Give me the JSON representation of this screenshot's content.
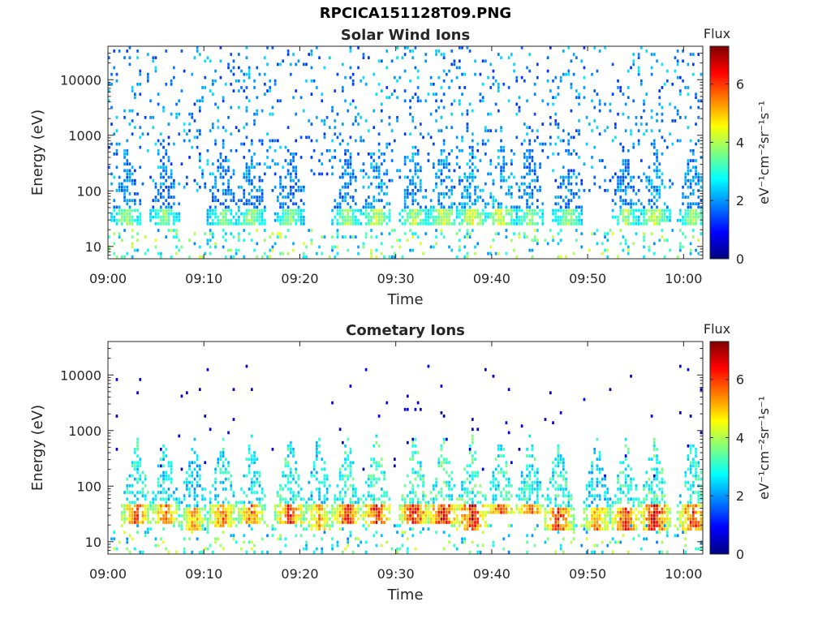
{
  "figure": {
    "file_title": "RPCICA151128T09.PNG"
  },
  "colormap": [
    "#00007f",
    "#0000ff",
    "#007fff",
    "#00ffff",
    "#7fff7f",
    "#ffff00",
    "#ff7f00",
    "#ff0000",
    "#7f0000"
  ],
  "chart_data": [
    {
      "type": "heatmap",
      "title": "Solar Wind Ions",
      "xlabel": "Time",
      "ylabel": "Energy (eV)",
      "x_range": [
        "09:00",
        "10:02"
      ],
      "x_ticks": [
        "09:00",
        "09:10",
        "09:20",
        "09:30",
        "09:40",
        "09:50",
        "10:00"
      ],
      "y_scale": "log",
      "ylim": [
        6,
        40000
      ],
      "y_ticks": [
        "10",
        "100",
        "1000",
        "10000"
      ],
      "colorbar": {
        "title": "Flux",
        "unit_label": "eV⁻¹cm⁻²sr⁻¹s⁻¹",
        "range": [
          0,
          7.3
        ],
        "ticks": [
          "0",
          "2",
          "4",
          "6"
        ]
      },
      "bursts": [
        {
          "time": "09:02",
          "band_eV": [
            25,
            45
          ],
          "peak_flux": 4.2
        },
        {
          "time": "09:06",
          "band_eV": [
            25,
            45
          ],
          "peak_flux": 4.0
        },
        {
          "time": "09:12",
          "band_eV": [
            25,
            45
          ],
          "peak_flux": 4.0
        },
        {
          "time": "09:15",
          "band_eV": [
            25,
            45
          ],
          "peak_flux": 4.2
        },
        {
          "time": "09:19",
          "band_eV": [
            25,
            45
          ],
          "peak_flux": 4.0
        },
        {
          "time": "09:25",
          "band_eV": [
            25,
            45
          ],
          "peak_flux": 4.2
        },
        {
          "time": "09:28",
          "band_eV": [
            25,
            45
          ],
          "peak_flux": 4.6
        },
        {
          "time": "09:32",
          "band_eV": [
            25,
            45
          ],
          "peak_flux": 4.4
        },
        {
          "time": "09:35",
          "band_eV": [
            25,
            45
          ],
          "peak_flux": 4.6
        },
        {
          "time": "09:38",
          "band_eV": [
            25,
            45
          ],
          "peak_flux": 4.8
        },
        {
          "time": "09:41",
          "band_eV": [
            25,
            45
          ],
          "peak_flux": 4.8
        },
        {
          "time": "09:44",
          "band_eV": [
            25,
            45
          ],
          "peak_flux": 4.2
        },
        {
          "time": "09:48",
          "band_eV": [
            25,
            45
          ],
          "peak_flux": 4.2
        },
        {
          "time": "09:54",
          "band_eV": [
            25,
            45
          ],
          "peak_flux": 4.2
        },
        {
          "time": "09:57",
          "band_eV": [
            25,
            45
          ],
          "peak_flux": 4.6
        },
        {
          "time": "10:01",
          "band_eV": [
            25,
            45
          ],
          "peak_flux": 4.2
        }
      ],
      "background": {
        "energy_eV": [
          100,
          40000
        ],
        "flux": [
          1.2,
          2.6
        ]
      }
    },
    {
      "type": "heatmap",
      "title": "Cometary Ions",
      "xlabel": "Time",
      "ylabel": "Energy (eV)",
      "x_range": [
        "09:00",
        "10:02"
      ],
      "x_ticks": [
        "09:00",
        "09:10",
        "09:20",
        "09:30",
        "09:40",
        "09:50",
        "10:00"
      ],
      "y_scale": "log",
      "ylim": [
        6,
        40000
      ],
      "y_ticks": [
        "10",
        "100",
        "1000",
        "10000"
      ],
      "colorbar": {
        "title": "Flux",
        "unit_label": "eV⁻¹cm⁻²sr⁻¹s⁻¹",
        "range": [
          0,
          7.3
        ],
        "ticks": [
          "0",
          "2",
          "4",
          "6"
        ]
      },
      "bursts": [
        {
          "time": "09:03",
          "band_eV": [
            20,
            45
          ],
          "peak_flux": 6.4
        },
        {
          "time": "09:06",
          "band_eV": [
            20,
            45
          ],
          "peak_flux": 6.0
        },
        {
          "time": "09:09",
          "band_eV": [
            15,
            40
          ],
          "peak_flux": 5.6
        },
        {
          "time": "09:12",
          "band_eV": [
            18,
            45
          ],
          "peak_flux": 6.2
        },
        {
          "time": "09:15",
          "band_eV": [
            20,
            45
          ],
          "peak_flux": 6.0
        },
        {
          "time": "09:19",
          "band_eV": [
            20,
            45
          ],
          "peak_flux": 6.6
        },
        {
          "time": "09:22",
          "band_eV": [
            15,
            45
          ],
          "peak_flux": 5.6
        },
        {
          "time": "09:25",
          "band_eV": [
            20,
            45
          ],
          "peak_flux": 6.6
        },
        {
          "time": "09:28",
          "band_eV": [
            20,
            45
          ],
          "peak_flux": 6.8
        },
        {
          "time": "09:32",
          "band_eV": [
            20,
            45
          ],
          "peak_flux": 7.0
        },
        {
          "time": "09:35",
          "band_eV": [
            20,
            45
          ],
          "peak_flux": 7.0
        },
        {
          "time": "09:38",
          "band_eV": [
            15,
            45
          ],
          "peak_flux": 7.0
        },
        {
          "time": "09:41",
          "band_eV": [
            30,
            45
          ],
          "peak_flux": 6.6
        },
        {
          "time": "09:44",
          "band_eV": [
            30,
            45
          ],
          "peak_flux": 6.4
        },
        {
          "time": "09:47",
          "band_eV": [
            15,
            40
          ],
          "peak_flux": 6.6
        },
        {
          "time": "09:51",
          "band_eV": [
            15,
            40
          ],
          "peak_flux": 5.8
        },
        {
          "time": "09:54",
          "band_eV": [
            15,
            40
          ],
          "peak_flux": 6.6
        },
        {
          "time": "09:57",
          "band_eV": [
            15,
            45
          ],
          "peak_flux": 7.0
        },
        {
          "time": "10:01",
          "band_eV": [
            15,
            45
          ],
          "peak_flux": 6.6
        }
      ],
      "background": {
        "energy_eV": [
          150,
          15000
        ],
        "flux": [
          0.3,
          1.0
        ]
      }
    }
  ]
}
